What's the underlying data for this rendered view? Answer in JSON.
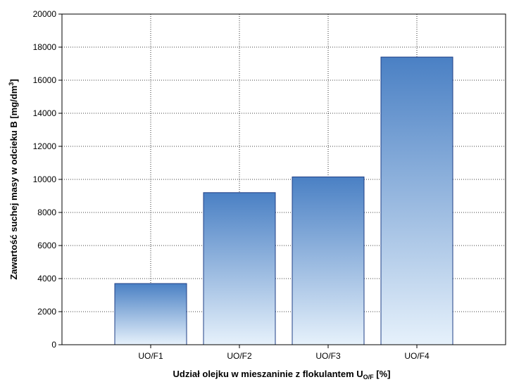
{
  "chart_data": {
    "type": "bar",
    "categories": [
      "UO/F1",
      "UO/F2",
      "UO/F3",
      "UO/F4"
    ],
    "values": [
      3700,
      9200,
      10150,
      17400
    ],
    "ylim": [
      0,
      20000
    ],
    "yticks": [
      0,
      2000,
      4000,
      6000,
      8000,
      10000,
      12000,
      14000,
      16000,
      18000,
      20000
    ],
    "ylabel": {
      "text": "Zawartość suchej masy w odcieku B [mg/dm",
      "sup": "3",
      "suffix": "]"
    },
    "xlabel": {
      "text": "Udział olejku w mieszaninie z flokulantem U",
      "sub": "O/F",
      "suffix": " [%]"
    },
    "grid": true,
    "colors": {
      "bar_top": "#4a80c4",
      "bar_bottom": "#e6f1fb",
      "bar_stroke": "#1f3f86",
      "grid": "#000000"
    }
  }
}
